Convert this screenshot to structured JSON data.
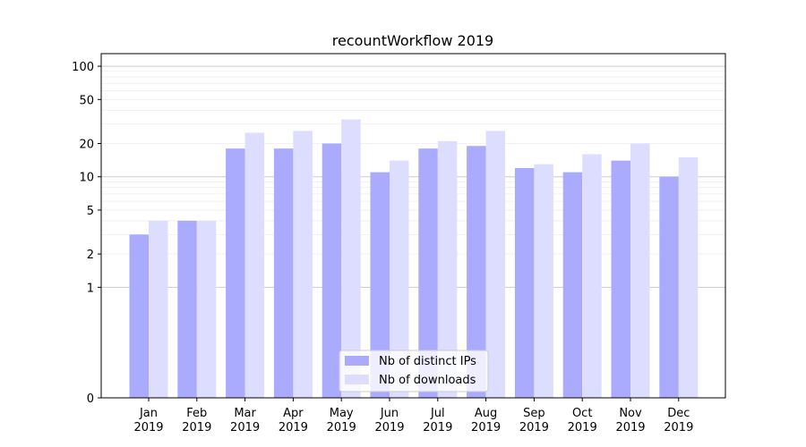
{
  "chart_data": {
    "type": "bar",
    "title": "recountWorkflow 2019",
    "xlabel": "",
    "ylabel": "",
    "y_scale": "symlog",
    "ylim": [
      0,
      130
    ],
    "yticks": [
      0,
      1,
      2,
      5,
      10,
      20,
      50,
      100
    ],
    "grid": true,
    "legend_position": "bottom-center",
    "categories": [
      [
        "Jan",
        "2019"
      ],
      [
        "Feb",
        "2019"
      ],
      [
        "Mar",
        "2019"
      ],
      [
        "Apr",
        "2019"
      ],
      [
        "May",
        "2019"
      ],
      [
        "Jun",
        "2019"
      ],
      [
        "Jul",
        "2019"
      ],
      [
        "Aug",
        "2019"
      ],
      [
        "Sep",
        "2019"
      ],
      [
        "Oct",
        "2019"
      ],
      [
        "Nov",
        "2019"
      ],
      [
        "Dec",
        "2019"
      ]
    ],
    "series": [
      {
        "name": "Nb of distinct IPs",
        "color": "#aaaaff",
        "values": [
          3,
          4,
          18,
          18,
          20,
          11,
          18,
          19,
          12,
          11,
          14,
          10
        ]
      },
      {
        "name": "Nb of downloads",
        "color": "#ddddff",
        "values": [
          4,
          4,
          25,
          26,
          33,
          14,
          21,
          26,
          13,
          16,
          20,
          15
        ]
      }
    ]
  }
}
